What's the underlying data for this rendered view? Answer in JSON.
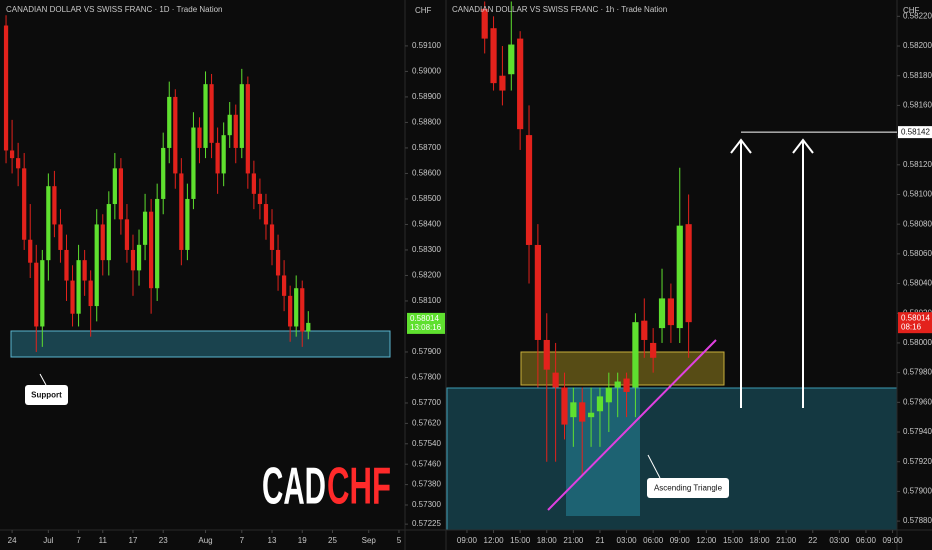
{
  "chart_data": [
    {
      "type": "candlestick",
      "title": "CANADIAN DOLLAR VS SWISS FRANC · 1D · Trade Nation",
      "axis_label": "CHF",
      "up_color": "#5fe02f",
      "down_color": "#e3221c",
      "x": [
        0,
        1,
        2,
        3,
        4,
        5,
        6,
        7,
        8,
        9,
        10,
        11,
        12,
        13,
        14,
        15,
        16,
        17,
        18,
        19,
        20,
        21,
        22,
        23,
        24,
        25,
        26,
        27,
        28,
        29,
        30,
        31,
        32,
        33,
        34,
        35,
        36,
        37,
        38,
        39,
        40,
        41,
        42,
        43,
        44,
        45,
        46,
        47,
        48,
        49,
        50
      ],
      "candles": [
        [
          0.5918,
          0.5922,
          0.5864,
          0.5869
        ],
        [
          0.5869,
          0.5881,
          0.586,
          0.5866
        ],
        [
          0.5866,
          0.5872,
          0.5855,
          0.5862
        ],
        [
          0.5862,
          0.5868,
          0.583,
          0.5834
        ],
        [
          0.5834,
          0.5848,
          0.5819,
          0.5825
        ],
        [
          0.5825,
          0.5832,
          0.579,
          0.58
        ],
        [
          0.58,
          0.583,
          0.5792,
          0.5826
        ],
        [
          0.5826,
          0.586,
          0.5818,
          0.5855
        ],
        [
          0.5855,
          0.5861,
          0.5835,
          0.584
        ],
        [
          0.584,
          0.5846,
          0.5825,
          0.583
        ],
        [
          0.583,
          0.5836,
          0.581,
          0.5818
        ],
        [
          0.5818,
          0.5824,
          0.58,
          0.5805
        ],
        [
          0.5805,
          0.5832,
          0.58,
          0.5826
        ],
        [
          0.5826,
          0.583,
          0.5812,
          0.5818
        ],
        [
          0.5818,
          0.5822,
          0.5796,
          0.5808
        ],
        [
          0.5808,
          0.5846,
          0.5802,
          0.584
        ],
        [
          0.584,
          0.5844,
          0.582,
          0.5826
        ],
        [
          0.5826,
          0.5853,
          0.582,
          0.5848
        ],
        [
          0.5848,
          0.5868,
          0.5842,
          0.5862
        ],
        [
          0.5862,
          0.5866,
          0.5836,
          0.5842
        ],
        [
          0.5842,
          0.5848,
          0.5825,
          0.583
        ],
        [
          0.583,
          0.5836,
          0.5812,
          0.5822
        ],
        [
          0.5822,
          0.5838,
          0.5816,
          0.5832
        ],
        [
          0.5832,
          0.5852,
          0.5826,
          0.5845
        ],
        [
          0.5845,
          0.585,
          0.5805,
          0.5815
        ],
        [
          0.5815,
          0.5856,
          0.581,
          0.585
        ],
        [
          0.585,
          0.5876,
          0.5844,
          0.587
        ],
        [
          0.587,
          0.5896,
          0.5864,
          0.589
        ],
        [
          0.589,
          0.5893,
          0.5854,
          0.586
        ],
        [
          0.586,
          0.5866,
          0.5824,
          0.583
        ],
        [
          0.583,
          0.5856,
          0.5826,
          0.585
        ],
        [
          0.585,
          0.5884,
          0.5846,
          0.5878
        ],
        [
          0.5878,
          0.5882,
          0.5864,
          0.587
        ],
        [
          0.587,
          0.59,
          0.5866,
          0.5895
        ],
        [
          0.5895,
          0.5899,
          0.5866,
          0.5872
        ],
        [
          0.5872,
          0.5878,
          0.5852,
          0.586
        ],
        [
          0.586,
          0.588,
          0.5855,
          0.5875
        ],
        [
          0.5875,
          0.5888,
          0.587,
          0.5883
        ],
        [
          0.5883,
          0.5887,
          0.5864,
          0.587
        ],
        [
          0.587,
          0.5901,
          0.5866,
          0.5895
        ],
        [
          0.5895,
          0.5898,
          0.5854,
          0.586
        ],
        [
          0.586,
          0.5865,
          0.5846,
          0.5852
        ],
        [
          0.5852,
          0.5858,
          0.5842,
          0.5848
        ],
        [
          0.5848,
          0.5852,
          0.5834,
          0.584
        ],
        [
          0.584,
          0.5846,
          0.5824,
          0.583
        ],
        [
          0.583,
          0.5836,
          0.5814,
          0.582
        ],
        [
          0.582,
          0.5826,
          0.5806,
          0.5812
        ],
        [
          0.5812,
          0.5816,
          0.5794,
          0.58
        ],
        [
          0.58,
          0.582,
          0.5796,
          0.5815
        ],
        [
          0.5815,
          0.5818,
          0.5792,
          0.5798
        ],
        [
          0.5798,
          0.5806,
          0.5795,
          0.58014
        ]
      ],
      "xlim": [
        -1,
        66
      ],
      "xticks": [
        {
          "value": 1,
          "label": "24"
        },
        {
          "value": 7,
          "label": "Jul"
        },
        {
          "value": 12,
          "label": "7"
        },
        {
          "value": 16,
          "label": "11"
        },
        {
          "value": 21,
          "label": "17"
        },
        {
          "value": 26,
          "label": "23"
        },
        {
          "value": 33,
          "label": "Aug"
        },
        {
          "value": 39,
          "label": "7"
        },
        {
          "value": 44,
          "label": "13"
        },
        {
          "value": 49,
          "label": "19"
        },
        {
          "value": 54,
          "label": "25"
        },
        {
          "value": 60,
          "label": "Sep"
        },
        {
          "value": 65,
          "label": "5"
        }
      ],
      "ylim": [
        0.57202,
        0.5928
      ],
      "yticks": [
        {
          "value": 0.591,
          "label": "0.59100"
        },
        {
          "value": 0.59,
          "label": "0.59000"
        },
        {
          "value": 0.589,
          "label": "0.58900"
        },
        {
          "value": 0.588,
          "label": "0.58800"
        },
        {
          "value": 0.587,
          "label": "0.58700"
        },
        {
          "value": 0.586,
          "label": "0.58600"
        },
        {
          "value": 0.585,
          "label": "0.58500"
        },
        {
          "value": 0.584,
          "label": "0.58400"
        },
        {
          "value": 0.583,
          "label": "0.58300"
        },
        {
          "value": 0.582,
          "label": "0.58200"
        },
        {
          "value": 0.581,
          "label": "0.58100"
        },
        {
          "value": 0.579,
          "label": "0.57900"
        },
        {
          "value": 0.578,
          "label": "0.57800"
        },
        {
          "value": 0.577,
          "label": "0.57700"
        },
        {
          "value": 0.5762,
          "label": "0.57620"
        },
        {
          "value": 0.5754,
          "label": "0.57540"
        },
        {
          "value": 0.5746,
          "label": "0.57460"
        },
        {
          "value": 0.5738,
          "label": "0.57380"
        },
        {
          "value": 0.573,
          "label": "0.57300"
        },
        {
          "value": 0.57225,
          "label": "0.57225"
        }
      ],
      "price_label": 0.58014,
      "price_label_color": "#5fe02f",
      "countdown": "13:08:16",
      "annotations": [
        "Support"
      ],
      "watermark": [
        "CAD",
        "CHF"
      ]
    },
    {
      "type": "candlestick",
      "title": "CANADIAN DOLLAR VS SWISS FRANC · 1h · Trade Nation",
      "axis_label": "CHF",
      "up_color": "#5fe02f",
      "down_color": "#e3221c",
      "x": [
        2,
        3,
        4,
        5,
        6,
        7,
        8,
        9,
        10,
        11,
        12,
        13,
        14,
        15,
        16,
        17,
        18,
        19,
        20,
        21,
        22,
        23,
        24,
        25
      ],
      "candles": [
        [
          0.58225,
          0.5823,
          0.58195,
          0.58205
        ],
        [
          0.58212,
          0.5822,
          0.5817,
          0.58175
        ],
        [
          0.5818,
          0.582,
          0.5816,
          0.5817
        ],
        [
          0.58181,
          0.5823,
          0.5817,
          0.58201
        ],
        [
          0.58205,
          0.5821,
          0.5813,
          0.58144
        ],
        [
          0.5814,
          0.5816,
          0.5804,
          0.58066
        ],
        [
          0.58066,
          0.5808,
          0.5797,
          0.58002
        ],
        [
          0.58002,
          0.5802,
          0.5792,
          0.57982
        ],
        [
          0.5798,
          0.58,
          0.5792,
          0.5797
        ],
        [
          0.5797,
          0.5798,
          0.57935,
          0.57945
        ],
        [
          0.5795,
          0.5797,
          0.5793,
          0.5796
        ],
        [
          0.5796,
          0.5797,
          0.5791,
          0.57947
        ],
        [
          0.5795,
          0.5797,
          0.5793,
          0.57953
        ],
        [
          0.57954,
          0.5797,
          0.5793,
          0.57964
        ],
        [
          0.5796,
          0.5798,
          0.5794,
          0.5797
        ],
        [
          0.5797,
          0.5798,
          0.5795,
          0.57974
        ],
        [
          0.57976,
          0.5798,
          0.5795,
          0.57967
        ],
        [
          0.5797,
          0.5802,
          0.5795,
          0.58014
        ],
        [
          0.58015,
          0.5803,
          0.5799,
          0.58002
        ],
        [
          0.58,
          0.5801,
          0.5798,
          0.5799
        ],
        [
          0.5801,
          0.5805,
          0.58,
          0.5803
        ],
        [
          0.5803,
          0.5804,
          0.58,
          0.58012
        ],
        [
          0.5801,
          0.58118,
          0.58,
          0.58079
        ],
        [
          0.5808,
          0.581,
          0.5799,
          0.58014
        ]
      ],
      "xlim": [
        -2.25,
        48.5
      ],
      "xticks": [
        {
          "value": 0,
          "label": "09:00"
        },
        {
          "value": 3,
          "label": "12:00"
        },
        {
          "value": 6,
          "label": "15:00"
        },
        {
          "value": 9,
          "label": "18:00"
        },
        {
          "value": 12,
          "label": "21:00"
        },
        {
          "value": 15,
          "label": "21"
        },
        {
          "value": 18,
          "label": "03:00"
        },
        {
          "value": 21,
          "label": "06:00"
        },
        {
          "value": 24,
          "label": "09:00"
        },
        {
          "value": 27,
          "label": "12:00"
        },
        {
          "value": 30,
          "label": "15:00"
        },
        {
          "value": 33,
          "label": "18:00"
        },
        {
          "value": 36,
          "label": "21:00"
        },
        {
          "value": 39,
          "label": "22"
        },
        {
          "value": 42,
          "label": "03:00"
        },
        {
          "value": 45,
          "label": "06:00"
        },
        {
          "value": 48,
          "label": "09:00"
        }
      ],
      "ylim": [
        0.57874,
        0.58231
      ],
      "yticks": [
        {
          "value": 0.5822,
          "label": "0.58220"
        },
        {
          "value": 0.582,
          "label": "0.58200"
        },
        {
          "value": 0.5818,
          "label": "0.58180"
        },
        {
          "value": 0.5816,
          "label": "0.58160"
        },
        {
          "value": 0.5814,
          "label": "0.58140"
        },
        {
          "value": 0.5812,
          "label": "0.58120"
        },
        {
          "value": 0.581,
          "label": "0.58100"
        },
        {
          "value": 0.5808,
          "label": "0.58080"
        },
        {
          "value": 0.5806,
          "label": "0.58060"
        },
        {
          "value": 0.5804,
          "label": "0.58040"
        },
        {
          "value": 0.5802,
          "label": "0.58020"
        },
        {
          "value": 0.58,
          "label": "0.58000"
        },
        {
          "value": 0.5798,
          "label": "0.57980"
        },
        {
          "value": 0.5796,
          "label": "0.57960"
        },
        {
          "value": 0.5794,
          "label": "0.57940"
        },
        {
          "value": 0.5792,
          "label": "0.57920"
        },
        {
          "value": 0.579,
          "label": "0.57900"
        },
        {
          "value": 0.5788,
          "label": "0.57880"
        }
      ],
      "price_label": 0.58014,
      "price_label_color": "#e3221c",
      "countdown": "08:16",
      "target": 0.58142,
      "annotations": [
        "Ascending Triangle"
      ]
    }
  ]
}
